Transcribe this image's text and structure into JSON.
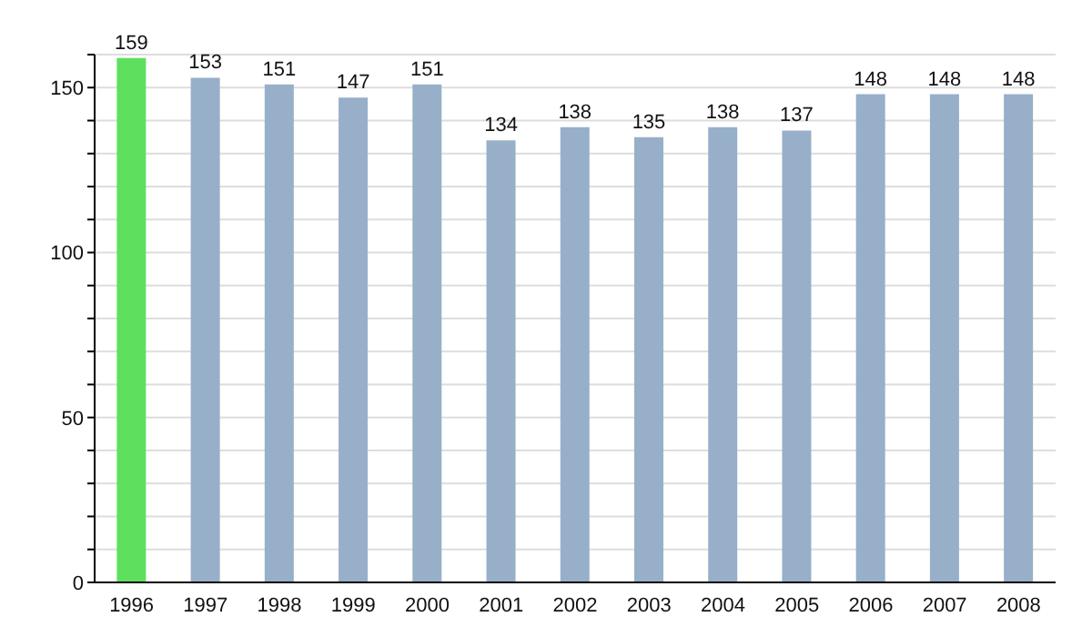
{
  "chart_data": {
    "type": "bar",
    "categories": [
      "1996",
      "1997",
      "1998",
      "1999",
      "2000",
      "2001",
      "2002",
      "2003",
      "2004",
      "2005",
      "2006",
      "2007",
      "2008"
    ],
    "values": [
      159,
      153,
      151,
      147,
      151,
      134,
      138,
      135,
      138,
      137,
      148,
      148,
      148
    ],
    "colors": [
      "#5ee05e",
      "#97afc9",
      "#97afc9",
      "#97afc9",
      "#97afc9",
      "#97afc9",
      "#97afc9",
      "#97afc9",
      "#97afc9",
      "#97afc9",
      "#97afc9",
      "#97afc9",
      "#97afc9"
    ],
    "ylim": [
      0,
      160
    ],
    "yticks": [
      0,
      {
        "value": 10,
        "label": null
      },
      {
        "value": 20,
        "label": null
      },
      {
        "value": 30,
        "label": null
      },
      {
        "value": 40,
        "label": null
      },
      50,
      {
        "value": 60,
        "label": null
      },
      {
        "value": 70,
        "label": null
      },
      {
        "value": 80,
        "label": null
      },
      {
        "value": 90,
        "label": null
      },
      100,
      {
        "value": 110,
        "label": null
      },
      {
        "value": 120,
        "label": null
      },
      {
        "value": 130,
        "label": null
      },
      {
        "value": 140,
        "label": null
      },
      150,
      {
        "value": 160,
        "label": null
      }
    ],
    "grid": "y",
    "data_labels": true
  }
}
